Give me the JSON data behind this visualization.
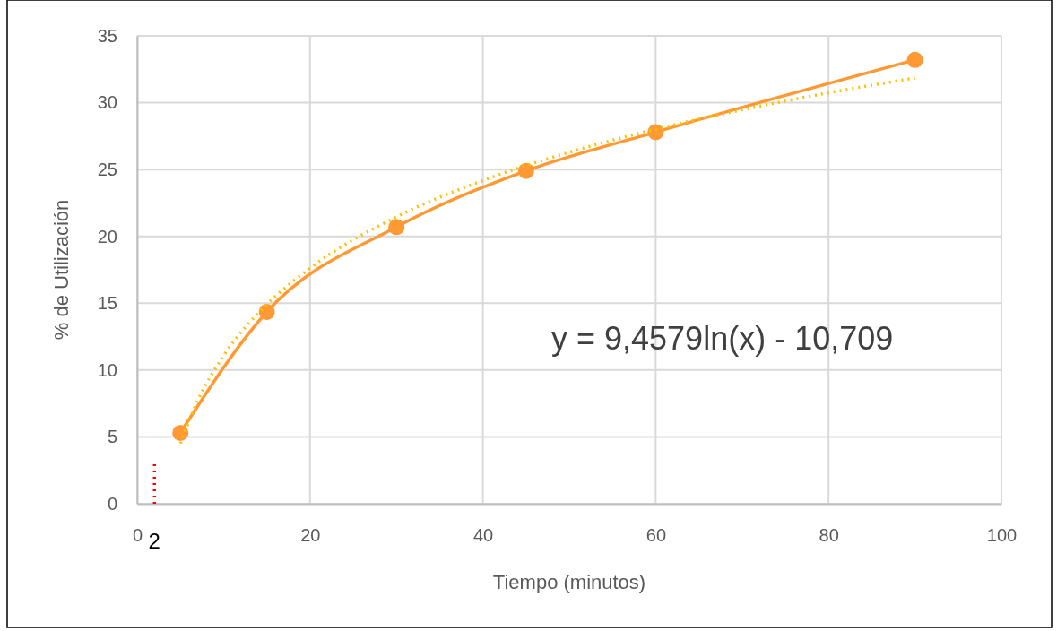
{
  "chart_data": {
    "type": "line",
    "xlabel": "Tiempo (minutos)",
    "ylabel": "% de Utilización",
    "xlim": [
      0,
      100
    ],
    "xticks": [
      0,
      20,
      40,
      60,
      80,
      100
    ],
    "ylim": [
      0,
      35
    ],
    "yticks": [
      0,
      5,
      10,
      15,
      20,
      25,
      30,
      35
    ],
    "grid": true,
    "series": [
      {
        "color": "#ff9933",
        "marker": "circle",
        "line_style": "solid",
        "x": [
          5,
          15,
          30,
          45,
          60,
          90
        ],
        "values": [
          5.3,
          14.35,
          20.7,
          24.9,
          27.8,
          33.2
        ]
      },
      {
        "color": "#ffc000",
        "marker": "none",
        "line_style": "dotted",
        "x": [
          5,
          7,
          10,
          15,
          20,
          30,
          40,
          50,
          60,
          70,
          80,
          90
        ],
        "values": [
          4.51,
          7.7,
          11.07,
          14.9,
          17.62,
          21.46,
          24.18,
          26.29,
          28.01,
          29.47,
          30.74,
          31.85
        ]
      },
      {
        "color": "#ff0000",
        "marker": "none",
        "line_style": "dotted",
        "x": [
          2,
          2
        ],
        "values": [
          0,
          3
        ]
      }
    ],
    "annotations": [
      "y = 9,4579ln(x) - 10,709",
      {
        "text": "2",
        "x": 2,
        "y": 0
      }
    ]
  }
}
